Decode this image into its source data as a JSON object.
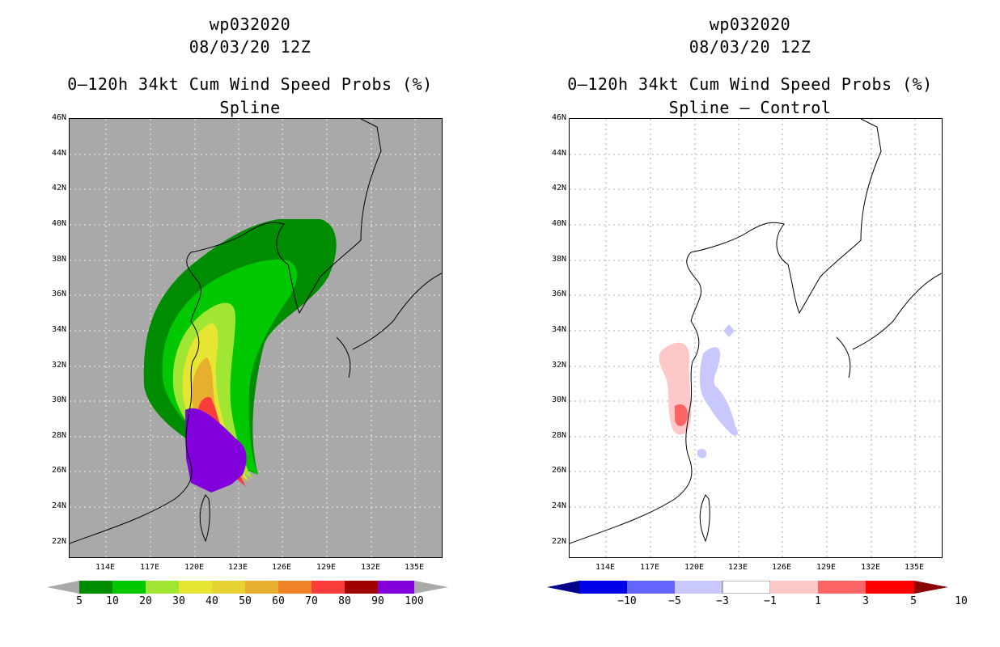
{
  "left_panel": {
    "storm_id": "wp032020",
    "datetime": "08/03/20 12Z",
    "product": "0–120h 34kt Cum Wind Speed Probs (%)",
    "subtitle": "Spline",
    "background_color": "#a9a9a9",
    "colorbar": {
      "labels": [
        "5",
        "10",
        "20",
        "30",
        "40",
        "50",
        "60",
        "70",
        "80",
        "90",
        "100"
      ],
      "colors": [
        "#008c00",
        "#00c800",
        "#00e600",
        "#a0e632",
        "#e6e632",
        "#e6d232",
        "#e6af2d",
        "#f08228",
        "#fa3c3c",
        "#a00000",
        "#8200dc"
      ],
      "end_color": "#a9a9a9"
    }
  },
  "right_panel": {
    "storm_id": "wp032020",
    "datetime": "08/03/20 12Z",
    "product": "0–120h 34kt Cum Wind Speed Probs (%)",
    "subtitle": "Spline – Control",
    "background_color": "#ffffff",
    "colorbar": {
      "labels": [
        "−10",
        "−5",
        "−3",
        "−1",
        "1",
        "3",
        "5",
        "10"
      ],
      "colors": [
        "#0000e6",
        "#6464ff",
        "#c8c8ff",
        "#ffffff",
        "#ffc8c8",
        "#ff6464",
        "#ff0000"
      ],
      "left_end_color": "#00008c",
      "right_end_color": "#8c0000"
    }
  },
  "axes": {
    "lat_labels": [
      "46N",
      "44N",
      "42N",
      "40N",
      "38N",
      "36N",
      "34N",
      "32N",
      "30N",
      "28N",
      "26N",
      "24N",
      "22N"
    ],
    "lon_labels": [
      "114E",
      "117E",
      "120E",
      "123E",
      "126E",
      "129E",
      "132E",
      "135E"
    ],
    "lat_range": [
      21,
      46
    ],
    "lon_range": [
      111,
      137
    ]
  }
}
